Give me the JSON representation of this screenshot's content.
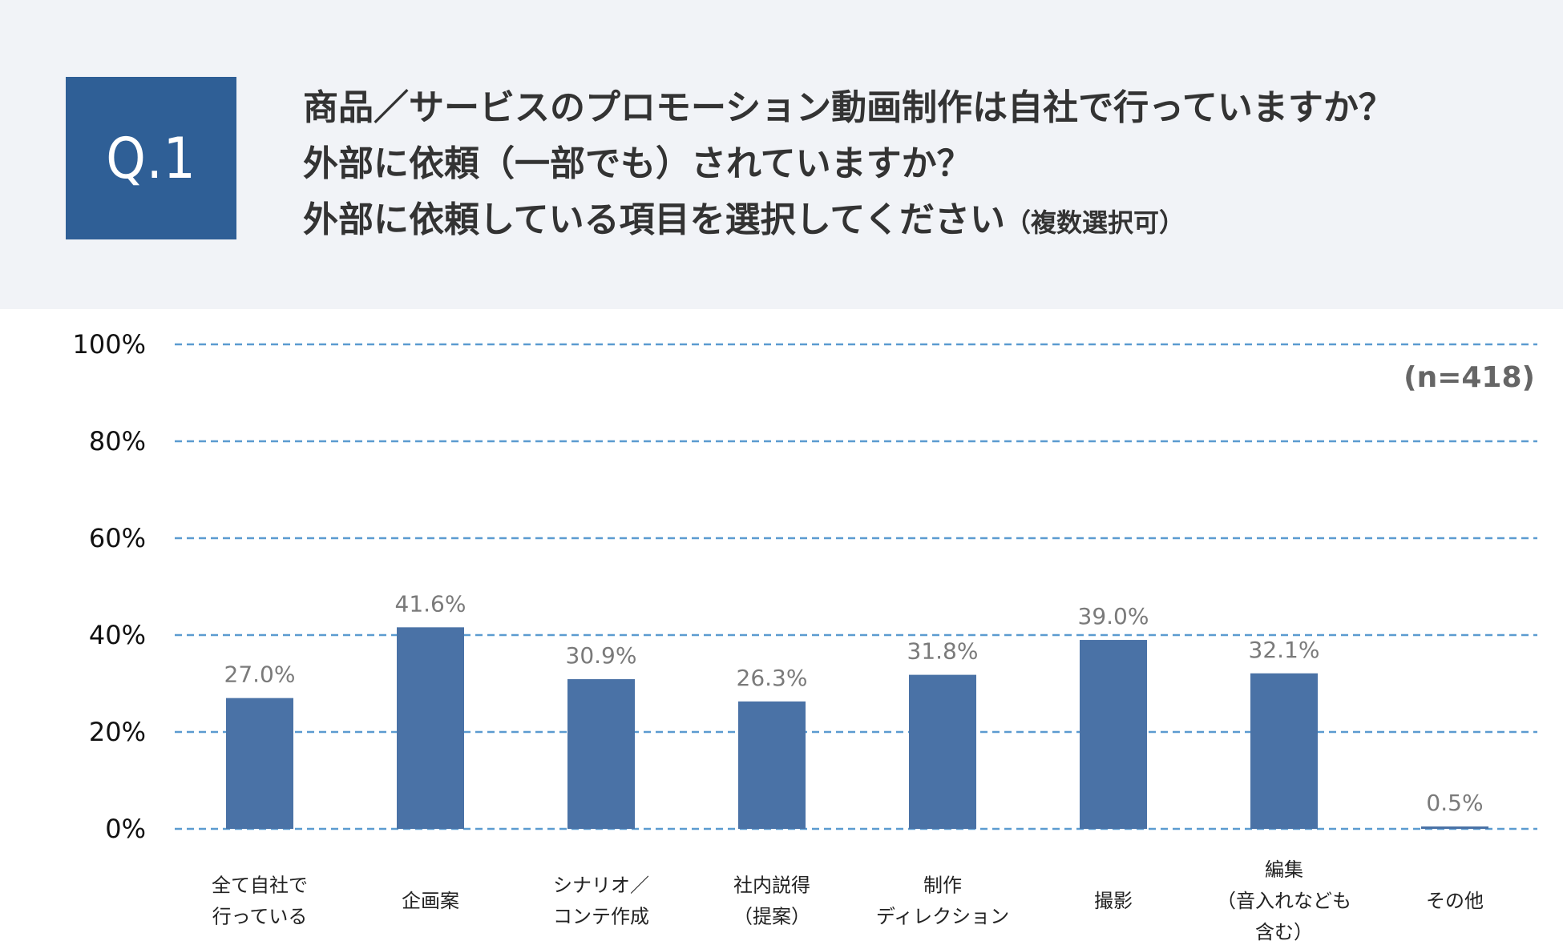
{
  "header": {
    "badge": "Q.1",
    "question_lines": [
      "商品／サービスのプロモーション動画制作は自社で行っていますか？",
      "外部に依頼（一部でも）されていますか？",
      "外部に依頼している項目を選択してください"
    ],
    "question_note": "（複数選択可）"
  },
  "colors": {
    "header_bg": "#f1f3f7",
    "badge_bg": "#2f5f96",
    "bar": "#4a72a6",
    "gridline": "#5b9bd0"
  },
  "chart_data": {
    "type": "bar",
    "title": "",
    "sample_size": "(n=418)",
    "categories": [
      "全て自社で\n行っている",
      "企画案",
      "シナリオ／\nコンテ作成",
      "社内説得\n（提案）",
      "制作\nディレクション",
      "撮影",
      "編集\n（音入れなども\n含む）",
      "その他"
    ],
    "values": [
      27.0,
      41.6,
      30.9,
      26.3,
      31.8,
      39.0,
      32.1,
      0.5
    ],
    "value_labels": [
      "27.0%",
      "41.6%",
      "30.9%",
      "26.3%",
      "31.8%",
      "39.0%",
      "32.1%",
      "0.5%"
    ],
    "yticks": [
      0,
      20,
      40,
      60,
      80,
      100
    ],
    "ytick_labels": [
      "0%",
      "20%",
      "40%",
      "60%",
      "80%",
      "100%"
    ],
    "ylim": [
      0,
      100
    ],
    "grid": true,
    "legend": "none"
  }
}
